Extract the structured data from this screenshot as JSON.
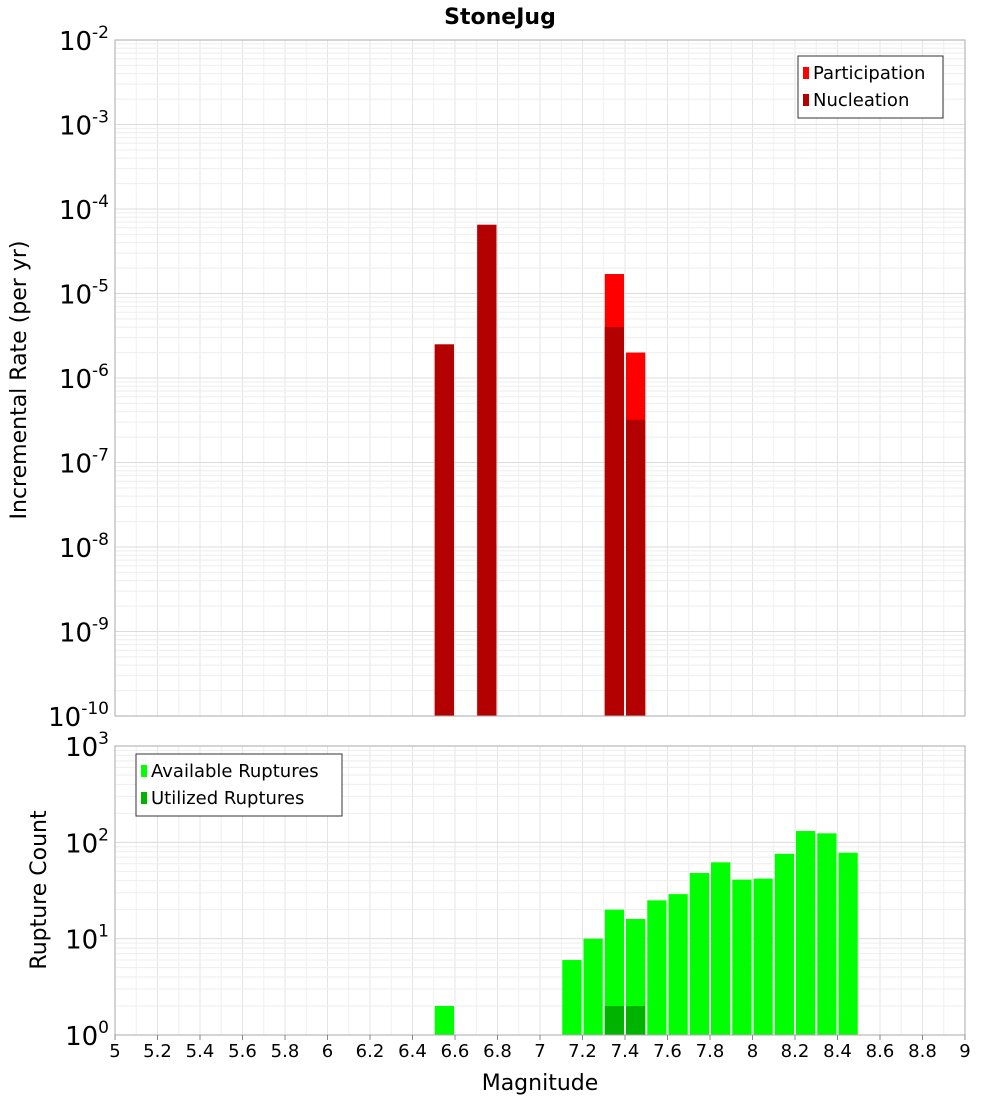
{
  "chart_data": [
    {
      "type": "bar",
      "title": "StoneJug",
      "ylabel": "Incremental Rate (per yr)",
      "xlabel": "",
      "yscale": "log",
      "ylim_exp": [
        -10,
        -2
      ],
      "xlim": [
        5,
        9
      ],
      "grid": true,
      "legend_position": "top-right",
      "series": [
        {
          "name": "Participation",
          "color": "#ff0000",
          "points": [
            {
              "x": 6.55,
              "y": 2.5e-06
            },
            {
              "x": 6.75,
              "y": 6.5e-05
            },
            {
              "x": 7.35,
              "y": 1.7e-05
            },
            {
              "x": 7.45,
              "y": 2e-06
            }
          ]
        },
        {
          "name": "Nucleation",
          "color": "#b30000",
          "points": [
            {
              "x": 6.55,
              "y": 2.5e-06
            },
            {
              "x": 6.75,
              "y": 6.5e-05
            },
            {
              "x": 7.35,
              "y": 4e-06
            },
            {
              "x": 7.45,
              "y": 3.2e-07
            }
          ]
        }
      ]
    },
    {
      "type": "bar",
      "ylabel": "Rupture Count",
      "xlabel": "Magnitude",
      "yscale": "log",
      "ylim_exp": [
        0,
        3
      ],
      "xlim": [
        5,
        9
      ],
      "grid": true,
      "legend_position": "top-left",
      "series": [
        {
          "name": "Available Ruptures",
          "color": "#00ff00",
          "points": [
            {
              "x": 6.55,
              "y": 2
            },
            {
              "x": 6.75,
              "y": 1
            },
            {
              "x": 7.15,
              "y": 6
            },
            {
              "x": 7.25,
              "y": 10
            },
            {
              "x": 7.35,
              "y": 20
            },
            {
              "x": 7.45,
              "y": 16
            },
            {
              "x": 7.55,
              "y": 25
            },
            {
              "x": 7.65,
              "y": 29
            },
            {
              "x": 7.75,
              "y": 48
            },
            {
              "x": 7.85,
              "y": 62
            },
            {
              "x": 7.95,
              "y": 41
            },
            {
              "x": 8.05,
              "y": 42
            },
            {
              "x": 8.15,
              "y": 76
            },
            {
              "x": 8.25,
              "y": 131
            },
            {
              "x": 8.35,
              "y": 124
            },
            {
              "x": 8.45,
              "y": 78
            }
          ]
        },
        {
          "name": "Utilized Ruptures",
          "color": "#00b300",
          "points": [
            {
              "x": 6.55,
              "y": 1
            },
            {
              "x": 6.75,
              "y": 1
            },
            {
              "x": 7.35,
              "y": 2
            },
            {
              "x": 7.45,
              "y": 2
            }
          ]
        }
      ],
      "xticks": [
        "5",
        "5.2",
        "5.4",
        "5.6",
        "5.8",
        "6",
        "6.2",
        "6.4",
        "6.6",
        "6.8",
        "7",
        "7.2",
        "7.4",
        "7.6",
        "7.8",
        "8",
        "8.2",
        "8.4",
        "8.6",
        "8.8",
        "9"
      ]
    }
  ]
}
